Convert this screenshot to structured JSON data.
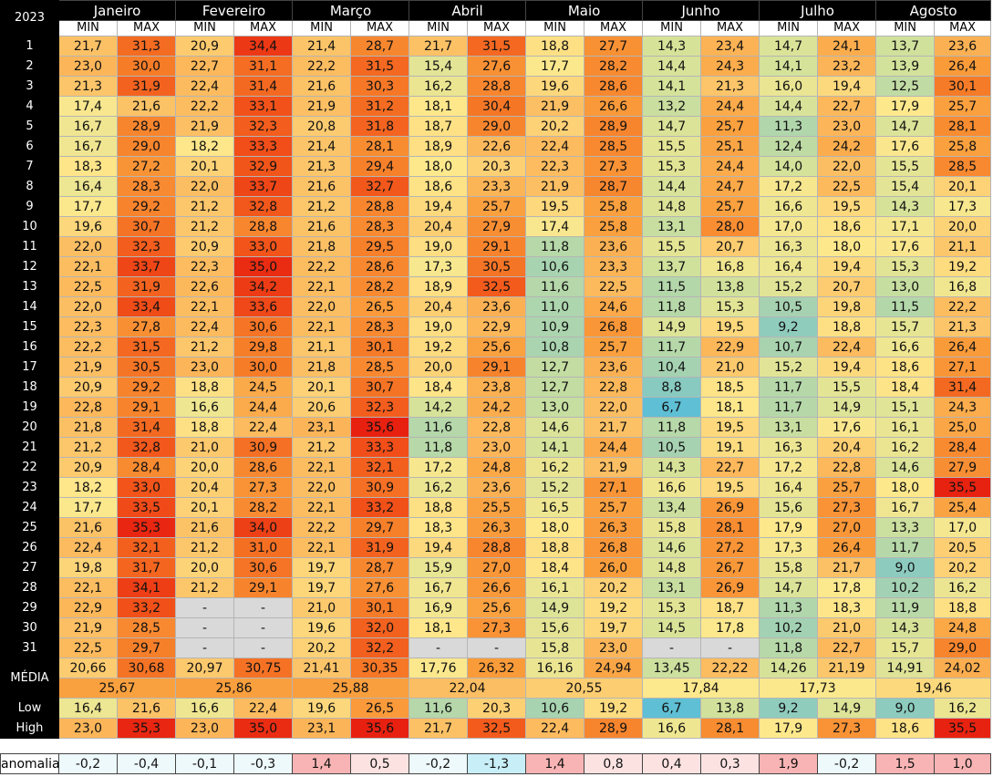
{
  "year": "2023",
  "months": [
    "Janeiro",
    "Fevereiro",
    "Março",
    "Abril",
    "Maio",
    "Junho",
    "Julho",
    "Agosto"
  ],
  "sub_labels": {
    "min": "MIN",
    "max": "MAX"
  },
  "days": [
    "1",
    "2",
    "3",
    "4",
    "5",
    "6",
    "7",
    "8",
    "9",
    "10",
    "11",
    "12",
    "13",
    "14",
    "15",
    "16",
    "17",
    "18",
    "19",
    "20",
    "21",
    "22",
    "23",
    "24",
    "25",
    "26",
    "27",
    "28",
    "29",
    "30",
    "31"
  ],
  "blank_symbol": "-",
  "data": [
    [
      "21,7",
      "31,3",
      "20,9",
      "34,4",
      "21,4",
      "28,7",
      "21,7",
      "31,5",
      "18,8",
      "27,7",
      "14,3",
      "23,4",
      "14,7",
      "24,1",
      "13,7",
      "23,6"
    ],
    [
      "23,0",
      "30,0",
      "22,7",
      "31,1",
      "22,2",
      "31,5",
      "15,4",
      "27,6",
      "17,7",
      "28,2",
      "14,4",
      "24,3",
      "14,1",
      "23,2",
      "13,9",
      "26,4"
    ],
    [
      "21,3",
      "31,9",
      "22,4",
      "31,4",
      "21,6",
      "30,3",
      "16,2",
      "28,8",
      "19,6",
      "28,6",
      "14,1",
      "21,3",
      "16,0",
      "19,4",
      "12,5",
      "30,1"
    ],
    [
      "17,4",
      "21,6",
      "22,2",
      "33,1",
      "21,9",
      "31,2",
      "18,1",
      "30,4",
      "21,9",
      "26,6",
      "13,2",
      "24,4",
      "14,4",
      "22,7",
      "17,9",
      "25,7"
    ],
    [
      "16,7",
      "28,9",
      "21,9",
      "32,3",
      "20,8",
      "31,8",
      "18,7",
      "29,0",
      "20,2",
      "28,9",
      "14,7",
      "25,7",
      "11,3",
      "23,0",
      "14,7",
      "28,1"
    ],
    [
      "16,7",
      "29,0",
      "18,2",
      "33,3",
      "21,4",
      "28,1",
      "18,9",
      "22,6",
      "22,4",
      "28,5",
      "15,5",
      "25,1",
      "12,4",
      "24,2",
      "17,6",
      "25,8"
    ],
    [
      "18,3",
      "27,2",
      "20,1",
      "32,9",
      "21,3",
      "29,4",
      "18,0",
      "20,3",
      "22,3",
      "27,3",
      "15,3",
      "24,4",
      "14,0",
      "22,0",
      "15,5",
      "28,5"
    ],
    [
      "16,4",
      "28,3",
      "22,0",
      "33,7",
      "21,6",
      "32,7",
      "18,6",
      "23,3",
      "21,9",
      "28,7",
      "14,4",
      "24,7",
      "17,2",
      "22,5",
      "15,4",
      "20,1"
    ],
    [
      "17,7",
      "29,2",
      "21,2",
      "32,8",
      "21,2",
      "28,8",
      "19,4",
      "25,7",
      "19,5",
      "25,8",
      "14,8",
      "25,7",
      "16,6",
      "19,5",
      "14,3",
      "17,3"
    ],
    [
      "19,6",
      "30,7",
      "21,2",
      "28,8",
      "21,6",
      "28,3",
      "20,4",
      "27,9",
      "17,4",
      "25,8",
      "13,1",
      "28,0",
      "17,0",
      "18,6",
      "17,1",
      "20,0"
    ],
    [
      "22,0",
      "32,3",
      "20,9",
      "33,0",
      "21,8",
      "29,5",
      "19,0",
      "29,1",
      "11,8",
      "23,6",
      "15,5",
      "20,7",
      "16,3",
      "18,0",
      "17,6",
      "21,1"
    ],
    [
      "22,1",
      "33,7",
      "22,3",
      "35,0",
      "22,2",
      "28,6",
      "17,3",
      "30,5",
      "10,6",
      "23,3",
      "13,7",
      "16,8",
      "16,4",
      "19,4",
      "15,3",
      "19,2"
    ],
    [
      "22,5",
      "31,9",
      "22,6",
      "34,2",
      "22,1",
      "28,2",
      "18,9",
      "32,5",
      "11,6",
      "22,5",
      "11,5",
      "13,8",
      "15,2",
      "20,7",
      "13,0",
      "16,8"
    ],
    [
      "22,0",
      "33,4",
      "22,1",
      "33,6",
      "22,0",
      "26,5",
      "20,4",
      "23,6",
      "11,0",
      "24,6",
      "11,8",
      "15,3",
      "10,5",
      "19,8",
      "11,5",
      "22,2"
    ],
    [
      "22,3",
      "27,8",
      "22,4",
      "30,6",
      "22,1",
      "28,3",
      "19,0",
      "22,9",
      "10,9",
      "26,8",
      "14,9",
      "19,5",
      "9,2",
      "18,8",
      "15,7",
      "21,3"
    ],
    [
      "22,2",
      "31,5",
      "21,2",
      "29,8",
      "21,1",
      "30,1",
      "19,2",
      "25,6",
      "10,8",
      "25,7",
      "11,7",
      "22,9",
      "10,7",
      "22,4",
      "16,6",
      "26,4"
    ],
    [
      "21,9",
      "30,5",
      "23,0",
      "30,0",
      "21,8",
      "28,5",
      "20,0",
      "29,1",
      "12,7",
      "23,6",
      "10,4",
      "21,0",
      "15,2",
      "19,4",
      "18,6",
      "27,1"
    ],
    [
      "20,9",
      "29,2",
      "18,8",
      "24,5",
      "20,1",
      "30,7",
      "18,4",
      "23,8",
      "12,7",
      "22,8",
      "8,8",
      "18,5",
      "11,7",
      "15,5",
      "18,4",
      "31,4"
    ],
    [
      "22,8",
      "29,1",
      "16,6",
      "24,4",
      "20,6",
      "32,3",
      "14,2",
      "24,2",
      "13,0",
      "22,0",
      "6,7",
      "18,1",
      "11,7",
      "14,9",
      "15,1",
      "24,3"
    ],
    [
      "21,8",
      "31,4",
      "18,8",
      "22,4",
      "23,1",
      "35,6",
      "11,6",
      "22,8",
      "14,6",
      "21,7",
      "11,8",
      "19,5",
      "13,1",
      "17,6",
      "16,1",
      "25,0"
    ],
    [
      "21,2",
      "32,8",
      "21,0",
      "30,9",
      "21,2",
      "33,3",
      "11,8",
      "23,0",
      "14,1",
      "24,4",
      "10,5",
      "19,1",
      "16,3",
      "20,4",
      "16,2",
      "28,4"
    ],
    [
      "20,9",
      "28,4",
      "20,0",
      "28,6",
      "22,1",
      "32,1",
      "17,2",
      "24,8",
      "16,2",
      "21,9",
      "14,3",
      "22,7",
      "17,2",
      "22,8",
      "14,6",
      "27,9"
    ],
    [
      "18,2",
      "33,0",
      "20,4",
      "27,3",
      "22,0",
      "30,9",
      "16,2",
      "23,6",
      "15,2",
      "27,1",
      "16,6",
      "19,5",
      "16,4",
      "25,7",
      "18,0",
      "35,5"
    ],
    [
      "17,7",
      "33,5",
      "20,1",
      "28,2",
      "22,1",
      "33,2",
      "18,8",
      "25,5",
      "16,5",
      "25,7",
      "13,4",
      "26,9",
      "15,6",
      "27,3",
      "16,7",
      "25,4"
    ],
    [
      "21,6",
      "35,3",
      "21,6",
      "34,0",
      "22,2",
      "29,7",
      "18,3",
      "26,3",
      "18,0",
      "26,3",
      "15,8",
      "28,1",
      "17,9",
      "27,0",
      "13,3",
      "17,0"
    ],
    [
      "22,4",
      "32,1",
      "21,2",
      "31,0",
      "22,1",
      "31,9",
      "19,4",
      "28,8",
      "18,8",
      "26,8",
      "14,6",
      "27,2",
      "17,3",
      "26,4",
      "11,7",
      "20,5"
    ],
    [
      "19,8",
      "31,7",
      "20,0",
      "30,6",
      "19,7",
      "28,7",
      "15,9",
      "27,0",
      "18,4",
      "26,0",
      "14,8",
      "26,7",
      "15,8",
      "21,7",
      "9,0",
      "20,2"
    ],
    [
      "22,1",
      "34,1",
      "21,2",
      "29,1",
      "19,7",
      "27,6",
      "16,7",
      "26,6",
      "16,1",
      "20,2",
      "13,1",
      "26,9",
      "14,7",
      "17,8",
      "10,2",
      "16,2"
    ],
    [
      "22,9",
      "33,2",
      "-",
      "-",
      "21,0",
      "30,1",
      "16,9",
      "25,6",
      "14,9",
      "19,2",
      "15,3",
      "18,7",
      "11,3",
      "18,3",
      "11,9",
      "18,8"
    ],
    [
      "21,9",
      "28,5",
      "-",
      "-",
      "19,6",
      "32,0",
      "18,1",
      "27,3",
      "15,6",
      "19,7",
      "14,5",
      "17,8",
      "10,2",
      "21,0",
      "14,3",
      "24,8"
    ],
    [
      "22,5",
      "29,7",
      "-",
      "-",
      "20,2",
      "32,2",
      "-",
      "-",
      "15,8",
      "23,0",
      "-",
      "-",
      "11,8",
      "22,7",
      "15,7",
      "29,0"
    ]
  ],
  "media": {
    "label": "MÉDIA",
    "values": [
      "20,66",
      "30,68",
      "20,97",
      "30,75",
      "21,41",
      "30,35",
      "17,76",
      "26,32",
      "16,16",
      "24,94",
      "13,45",
      "22,22",
      "14,26",
      "21,19",
      "14,91",
      "24,02"
    ],
    "month_avgs": [
      "25,67",
      "25,86",
      "25,88",
      "22,04",
      "20,55",
      "17,84",
      "17,73",
      "19,46"
    ]
  },
  "low": {
    "label": "Low",
    "values": [
      "16,4",
      "21,6",
      "16,6",
      "22,4",
      "19,6",
      "26,5",
      "11,6",
      "20,3",
      "10,6",
      "19,2",
      "6,7",
      "13,8",
      "9,2",
      "14,9",
      "9,0",
      "16,2"
    ]
  },
  "high": {
    "label": "High",
    "values": [
      "23,0",
      "35,3",
      "23,0",
      "35,0",
      "23,1",
      "35,6",
      "21,7",
      "32,5",
      "22,4",
      "28,9",
      "16,6",
      "28,1",
      "17,9",
      "27,3",
      "18,6",
      "35,5"
    ]
  },
  "anomalia": {
    "label": "anomalia",
    "values": [
      "-0,2",
      "-0,4",
      "-0,1",
      "-0,3",
      "1,4",
      "0,5",
      "-0,2",
      "-1,3",
      "1,4",
      "0,8",
      "0,4",
      "0,3",
      "1,9",
      "-0,2",
      "1,5",
      "1,0"
    ]
  },
  "colors": {
    "header_bg": "#000000",
    "blank_cell": "#d9d9d9",
    "anom_pos": "#f8b4b4",
    "anom_neg": "#c8eef8"
  }
}
